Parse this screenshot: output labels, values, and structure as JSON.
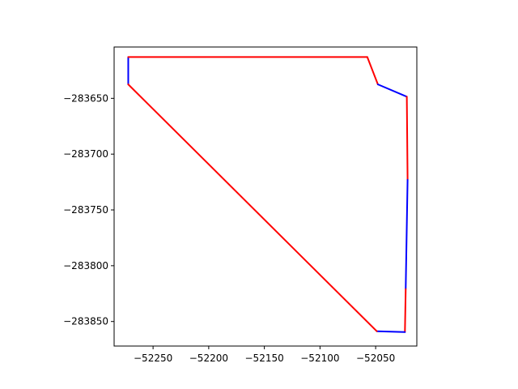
{
  "chart_data": {
    "type": "line",
    "title": "",
    "xlabel": "",
    "ylabel": "",
    "xlim": [
      -52285,
      -52013
    ],
    "ylim": [
      -283872,
      -283604
    ],
    "aspect": "equal",
    "grid": false,
    "x_ticks": [
      -52250,
      -52200,
      -52150,
      -52100,
      -52050
    ],
    "x_tick_labels": [
      "−52250",
      "−52200",
      "−52150",
      "−52100",
      "−52050"
    ],
    "y_ticks": [
      -283650,
      -283700,
      -283750,
      -283800,
      -283850
    ],
    "y_tick_labels": [
      "−283650",
      "−283700",
      "−283750",
      "−283800",
      "−283850"
    ],
    "colors": {
      "blue": "#0000ff",
      "red": "#ff0000"
    },
    "segments": [
      {
        "color": "blue",
        "x": [
          -52272.3,
          -52272.3
        ],
        "y": [
          -283613.0,
          -283637.5
        ]
      },
      {
        "color": "red",
        "x": [
          -52272.3,
          -52057.5
        ],
        "y": [
          -283613.0,
          -283613.0
        ]
      },
      {
        "color": "red",
        "x": [
          -52057.5,
          -52048.0
        ],
        "y": [
          -283613.0,
          -283637.5
        ]
      },
      {
        "color": "blue",
        "x": [
          -52048.0,
          -52022.0
        ],
        "y": [
          -283637.5,
          -283648.5
        ]
      },
      {
        "color": "red",
        "x": [
          -52022.0,
          -52021.3
        ],
        "y": [
          -283648.5,
          -283723.0
        ]
      },
      {
        "color": "blue",
        "x": [
          -52021.3,
          -52023.0
        ],
        "y": [
          -283723.0,
          -283821.0
        ]
      },
      {
        "color": "red",
        "x": [
          -52023.0,
          -52023.7
        ],
        "y": [
          -283821.0,
          -283859.5
        ]
      },
      {
        "color": "blue",
        "x": [
          -52023.7,
          -52049.0
        ],
        "y": [
          -283859.5,
          -283858.7
        ]
      },
      {
        "color": "red",
        "x": [
          -52049.0,
          -52272.3
        ],
        "y": [
          -283858.7,
          -283637.5
        ]
      }
    ]
  }
}
